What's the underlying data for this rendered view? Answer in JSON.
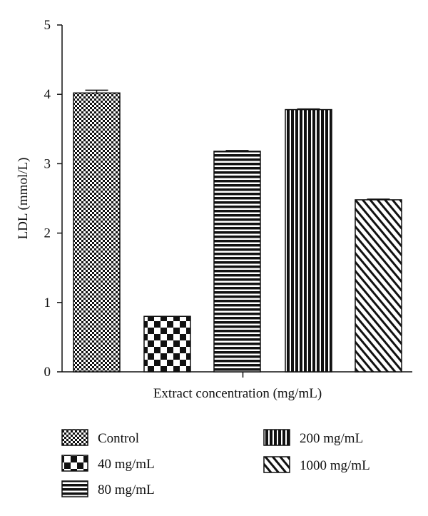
{
  "chart_data": {
    "type": "bar",
    "title": "",
    "xlabel": "Extract concentration (mg/mL)",
    "ylabel": "LDL (mmol/L)",
    "ylim": [
      0,
      5
    ],
    "yticks": [
      "0",
      "1",
      "2",
      "3",
      "4",
      "5"
    ],
    "categories": [
      "Control",
      "40 mg/mL",
      "80 mg/mL",
      "200 mg/mL",
      "1000 mg/mL"
    ],
    "values": [
      4.02,
      0.8,
      3.18,
      3.78,
      2.48
    ],
    "errors": [
      0.04,
      0.0,
      0.01,
      0.01,
      0.01
    ],
    "patterns": [
      "fine-checker",
      "coarse-checker",
      "horizontal-stripes",
      "vertical-stripes",
      "diagonal-stripes"
    ],
    "legend": [
      {
        "label": "Control",
        "pattern": "fine-checker"
      },
      {
        "label": "40 mg/mL",
        "pattern": "coarse-checker"
      },
      {
        "label": "80 mg/mL",
        "pattern": "horizontal-stripes"
      },
      {
        "label": "200 mg/mL",
        "pattern": "vertical-stripes"
      },
      {
        "label": "1000 mg/mL",
        "pattern": "diagonal-stripes"
      }
    ]
  }
}
